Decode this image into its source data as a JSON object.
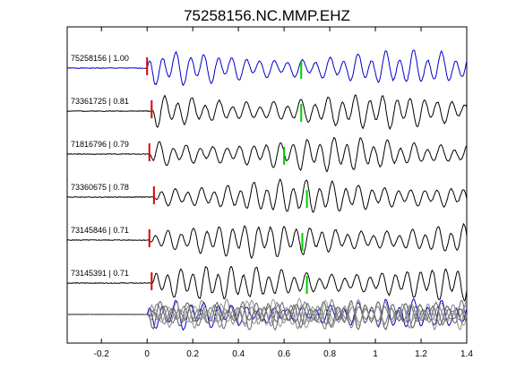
{
  "chart_data": {
    "type": "line",
    "title": "75258156.NC.MMP.EHZ",
    "xlabel": "",
    "ylabel": "",
    "xlim": [
      -0.35,
      1.4
    ],
    "x_ticks": [
      -0.2,
      0,
      0.2,
      0.4,
      0.6,
      0.8,
      1,
      1.2,
      1.4
    ],
    "x_tick_labels": [
      "-0.2",
      "0",
      "0.2",
      "0.4",
      "0.6",
      "0.8",
      "1",
      "1.2",
      "1.4"
    ],
    "grid": false,
    "pick_colors": {
      "first": "#dd0000",
      "second": "#00cc00"
    },
    "traces": [
      {
        "label": "75258156 | 1.00",
        "color": "#0000cc",
        "pick1": 0.0,
        "pick2": 0.675,
        "seed": 1
      },
      {
        "label": "73361725 | 0.81",
        "color": "#000000",
        "pick1": 0.02,
        "pick2": 0.675,
        "seed": 2
      },
      {
        "label": "71816796 | 0.79",
        "color": "#000000",
        "pick1": 0.01,
        "pick2": 0.6,
        "seed": 3
      },
      {
        "label": "73360675 | 0.78",
        "color": "#000000",
        "pick1": 0.03,
        "pick2": 0.7,
        "seed": 4
      },
      {
        "label": "73145846 | 0.71",
        "color": "#000000",
        "pick1": 0.01,
        "pick2": 0.68,
        "seed": 5
      },
      {
        "label": "73145391 | 0.71",
        "color": "#000000",
        "pick1": 0.02,
        "pick2": 0.7,
        "seed": 6
      }
    ],
    "stack_colors": [
      "#0000cc",
      "#555555",
      "#777777",
      "#999999",
      "#666666",
      "#888888"
    ]
  }
}
